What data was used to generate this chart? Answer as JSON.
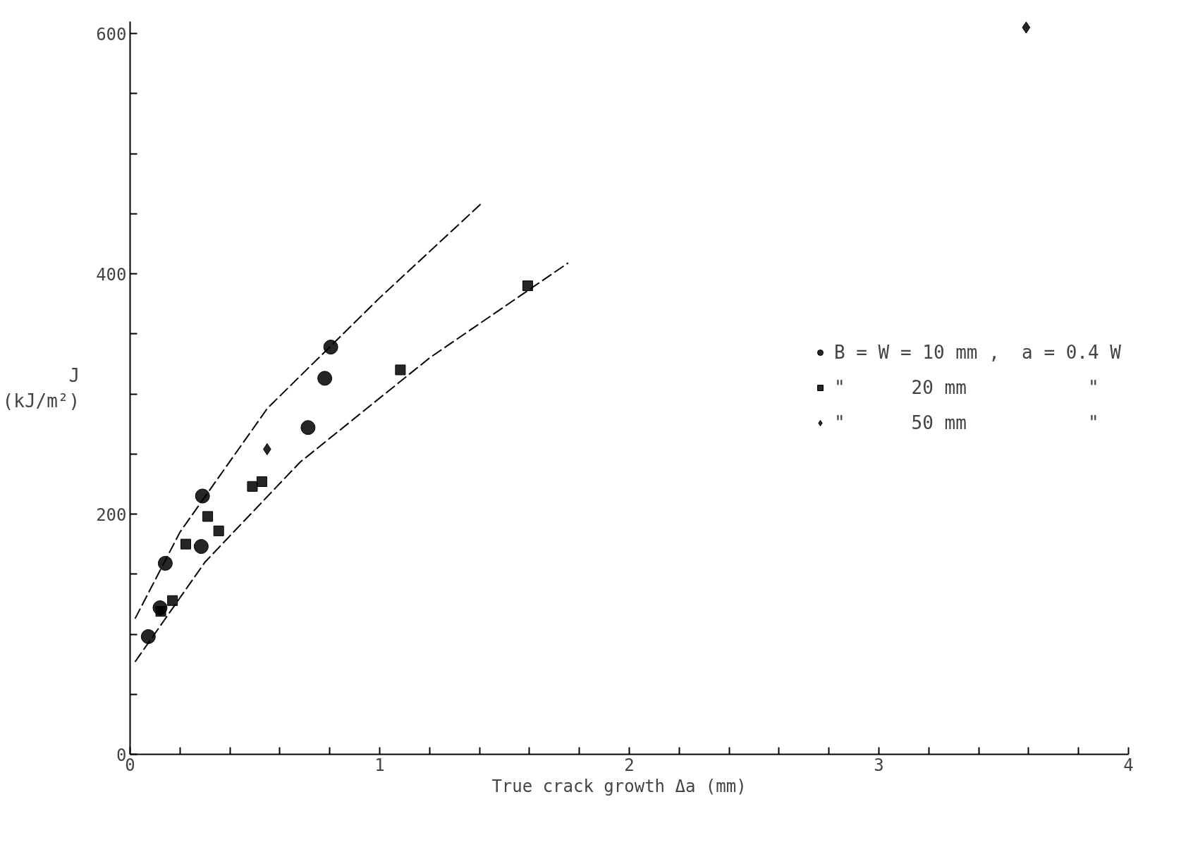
{
  "chart_data": {
    "type": "scatter",
    "xlabel": "True crack growth  Δa  (mm)",
    "ylabel": "J\n(kJ/m²)",
    "xlim": [
      0,
      4
    ],
    "ylim": [
      0,
      610
    ],
    "xticks": [
      0,
      {
        "value": 0.2,
        "label": null
      },
      {
        "value": 0.4,
        "label": null
      },
      {
        "value": 0.6,
        "label": null
      },
      {
        "value": 0.8,
        "label": null
      },
      1,
      {
        "value": 1.2,
        "label": null
      },
      {
        "value": 1.4,
        "label": null
      },
      {
        "value": 1.6,
        "label": null
      },
      {
        "value": 1.8,
        "label": null
      },
      2,
      {
        "value": 2.2,
        "label": null
      },
      {
        "value": 2.4,
        "label": null
      },
      {
        "value": 2.6,
        "label": null
      },
      {
        "value": 2.8,
        "label": null
      },
      3,
      {
        "value": 3.2,
        "label": null
      },
      {
        "value": 3.4,
        "label": null
      },
      {
        "value": 3.6,
        "label": null
      },
      {
        "value": 3.8,
        "label": null
      },
      4
    ],
    "yticks": [
      0,
      {
        "value": 50,
        "label": null
      },
      {
        "value": 100,
        "label": null
      },
      {
        "value": 150,
        "label": null
      },
      200,
      {
        "value": 250,
        "label": null
      },
      {
        "value": 300,
        "label": null
      },
      {
        "value": 350,
        "label": null
      },
      400,
      {
        "value": 450,
        "label": null
      },
      {
        "value": 500,
        "label": null
      },
      {
        "value": 550,
        "label": null
      },
      600
    ],
    "grid": false,
    "legend": "right",
    "series": [
      {
        "name": "B = W = 10 mm ,  a = 0.4 W",
        "color": "#000000",
        "marker": "circle",
        "x": [
          0.073,
          0.12,
          0.141,
          0.29,
          0.285,
          0.713,
          0.78,
          0.804
        ],
        "values": [
          98,
          122,
          159,
          215,
          173,
          272,
          313,
          339
        ]
      },
      {
        "name": "\"      20 mm           \"",
        "color": "#000000",
        "marker": "square",
        "x": [
          0.123,
          0.17,
          0.223,
          0.311,
          0.355,
          0.49,
          0.528,
          1.083,
          1.593
        ],
        "values": [
          119,
          128,
          175,
          198,
          186,
          223,
          227,
          320,
          390
        ]
      },
      {
        "name": "\"      50 mm           \"",
        "color": "#000000",
        "marker": "diamond",
        "x": [
          0.549,
          3.59
        ],
        "values": [
          254,
          605
        ]
      },
      {
        "type": "line",
        "line_style": "dashed",
        "color": "#000000",
        "x": [
          0.02,
          0.2,
          0.55,
          1.0,
          1.41
        ],
        "values": [
          113,
          185,
          288,
          380,
          459
        ]
      },
      {
        "type": "line",
        "line_style": "dashed",
        "color": "#000000",
        "x": [
          0.02,
          0.3,
          0.68,
          1.2,
          1.755
        ],
        "values": [
          77,
          160,
          243,
          330,
          409
        ]
      }
    ]
  }
}
